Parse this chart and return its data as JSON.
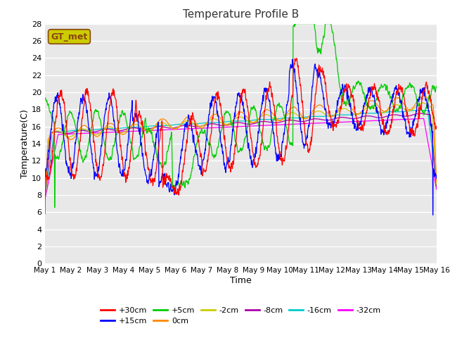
{
  "title": "Temperature Profile B",
  "xlabel": "Time",
  "ylabel": "Temperature(C)",
  "ylim": [
    0,
    28
  ],
  "yticks": [
    0,
    2,
    4,
    6,
    8,
    10,
    12,
    14,
    16,
    18,
    20,
    22,
    24,
    26,
    28
  ],
  "x_labels": [
    "May 1",
    "May 2",
    "May 3",
    "May 4",
    "May 5",
    "May 6",
    "May 7",
    "May 8",
    "May 9",
    "May 10",
    "May 11",
    "May 12",
    "May 13",
    "May 14",
    "May 15",
    "May 16"
  ],
  "legend_entries": [
    "+30cm",
    "+15cm",
    "+5cm",
    "0cm",
    "-2cm",
    "-8cm",
    "-16cm",
    "-32cm"
  ],
  "legend_colors": [
    "#ff0000",
    "#0000ff",
    "#00cc00",
    "#ff8800",
    "#cccc00",
    "#aa00aa",
    "#00cccc",
    "#ff00ff"
  ],
  "background_color": "#e8e8e8",
  "gt_met_box_facecolor": "#cccc00",
  "gt_met_box_edgecolor": "#8B4513",
  "days": 15,
  "n_points": 1500
}
